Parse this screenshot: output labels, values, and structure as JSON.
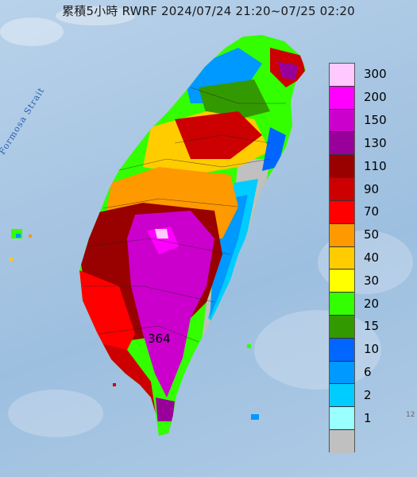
{
  "title": "累積5小時 RWRF 2024/07/24 21:20~07/25 02:20",
  "strait_label": "Formosa Strait",
  "max_value": "364",
  "lon_tick": "12",
  "legend": [
    {
      "label": "300",
      "color": "#ffc9ff"
    },
    {
      "label": "200",
      "color": "#ff00ff"
    },
    {
      "label": "150",
      "color": "#cc00cc"
    },
    {
      "label": "130",
      "color": "#990099"
    },
    {
      "label": "110",
      "color": "#990000"
    },
    {
      "label": "90",
      "color": "#cc0000"
    },
    {
      "label": "70",
      "color": "#ff0000"
    },
    {
      "label": "50",
      "color": "#ff9900"
    },
    {
      "label": "40",
      "color": "#ffcc00"
    },
    {
      "label": "30",
      "color": "#ffff00"
    },
    {
      "label": "20",
      "color": "#33ff00"
    },
    {
      "label": "15",
      "color": "#339900"
    },
    {
      "label": "10",
      "color": "#0066ff"
    },
    {
      "label": "6",
      "color": "#0099ff"
    },
    {
      "label": "2",
      "color": "#00ccff"
    },
    {
      "label": "1",
      "color": "#99ffff"
    },
    {
      "label": "",
      "color": "#c0c0c0"
    }
  ]
}
